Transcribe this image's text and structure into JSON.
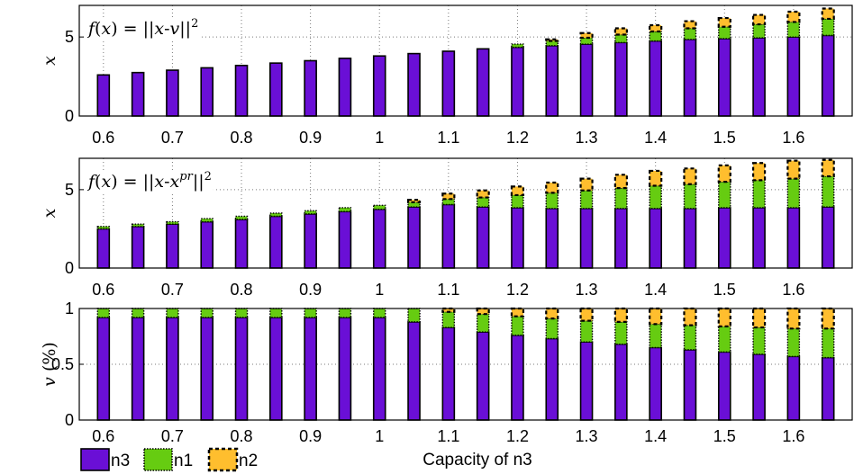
{
  "colors": {
    "n3": "#6a0fd6",
    "n1": "#66cc11",
    "n2": "#ffbe2e",
    "edge": "#000000",
    "grid": "#7a7a7a"
  },
  "x_tick_labels": [
    "0.6",
    "0.7",
    "0.8",
    "0.9",
    "1",
    "1.1",
    "1.2",
    "1.3",
    "1.4",
    "1.5",
    "1.6"
  ],
  "xlabel": "Capacity of n3",
  "legend": [
    {
      "name": "n3",
      "color": "#6a0fd6",
      "style": "solid-edge"
    },
    {
      "name": "n1",
      "color": "#66cc11",
      "style": "dotted-edge"
    },
    {
      "name": "n2",
      "color": "#ffbe2e",
      "style": "dashed-edge"
    }
  ],
  "chart_data": [
    {
      "type": "bar",
      "stacked": true,
      "title": "f(x) = ||x-v||^2",
      "title_parts": [
        {
          "t": "f",
          "i": true
        },
        {
          "t": "(",
          "i": false
        },
        {
          "t": "x",
          "i": true
        },
        {
          "t": ") = ||",
          "i": false
        },
        {
          "t": "x",
          "i": true
        },
        {
          "t": "-",
          "i": false
        },
        {
          "t": "v",
          "i": true
        },
        {
          "t": "||",
          "i": false
        },
        {
          "t": "2",
          "i": false,
          "sup": true
        }
      ],
      "ylabel": "x",
      "ylim": [
        0,
        7
      ],
      "yticks": [
        0,
        5
      ],
      "ytick_labels": [
        "0",
        "5"
      ],
      "grid": true,
      "x": [
        0.6,
        0.65,
        0.7,
        0.75,
        0.8,
        0.85,
        0.9,
        0.95,
        1.0,
        1.05,
        1.1,
        1.15,
        1.2,
        1.25,
        1.3,
        1.35,
        1.4,
        1.45,
        1.5,
        1.55,
        1.6,
        1.65
      ],
      "series": [
        {
          "name": "n3",
          "values": [
            2.6,
            2.75,
            2.9,
            3.05,
            3.2,
            3.35,
            3.5,
            3.65,
            3.8,
            3.95,
            4.1,
            4.25,
            4.35,
            4.45,
            4.55,
            4.65,
            4.75,
            4.85,
            4.9,
            4.95,
            5.0,
            5.1
          ]
        },
        {
          "name": "n1",
          "values": [
            0.0,
            0.0,
            0.0,
            0.0,
            0.0,
            0.0,
            0.0,
            0.0,
            0.0,
            0.0,
            0.0,
            0.0,
            0.2,
            0.3,
            0.4,
            0.5,
            0.6,
            0.7,
            0.75,
            0.85,
            0.95,
            1.05
          ]
        },
        {
          "name": "n2",
          "values": [
            0.0,
            0.0,
            0.0,
            0.0,
            0.0,
            0.0,
            0.0,
            0.0,
            0.0,
            0.0,
            0.0,
            0.0,
            0.0,
            0.1,
            0.3,
            0.4,
            0.4,
            0.45,
            0.55,
            0.6,
            0.65,
            0.65
          ]
        }
      ]
    },
    {
      "type": "bar",
      "stacked": true,
      "title": "f(x) = ||x-x^pr||^2",
      "title_parts": [
        {
          "t": "f",
          "i": true
        },
        {
          "t": "(",
          "i": false
        },
        {
          "t": "x",
          "i": true
        },
        {
          "t": ") = ||",
          "i": false
        },
        {
          "t": "x",
          "i": true
        },
        {
          "t": "-",
          "i": false
        },
        {
          "t": "x",
          "i": true
        },
        {
          "t": "pr",
          "i": true,
          "sup": true
        },
        {
          "t": "||",
          "i": false
        },
        {
          "t": "2",
          "i": false,
          "sup": true
        }
      ],
      "ylabel": "x",
      "ylim": [
        0,
        7
      ],
      "yticks": [
        0,
        5
      ],
      "ytick_labels": [
        "0",
        "5"
      ],
      "grid": true,
      "x": [
        0.6,
        0.65,
        0.7,
        0.75,
        0.8,
        0.85,
        0.9,
        0.95,
        1.0,
        1.05,
        1.1,
        1.15,
        1.2,
        1.25,
        1.3,
        1.35,
        1.4,
        1.45,
        1.5,
        1.55,
        1.6,
        1.65
      ],
      "series": [
        {
          "name": "n3",
          "values": [
            2.5,
            2.65,
            2.8,
            2.95,
            3.1,
            3.3,
            3.45,
            3.6,
            3.75,
            3.9,
            4.05,
            3.9,
            3.85,
            3.8,
            3.8,
            3.8,
            3.8,
            3.8,
            3.85,
            3.85,
            3.85,
            3.9
          ]
        },
        {
          "name": "n1",
          "values": [
            0.15,
            0.15,
            0.15,
            0.2,
            0.2,
            0.2,
            0.2,
            0.25,
            0.25,
            0.3,
            0.35,
            0.6,
            0.8,
            1.0,
            1.15,
            1.3,
            1.45,
            1.55,
            1.65,
            1.75,
            1.85,
            1.95
          ]
        },
        {
          "name": "n2",
          "values": [
            0.0,
            0.0,
            0.0,
            0.0,
            0.0,
            0.0,
            0.0,
            0.0,
            0.0,
            0.15,
            0.35,
            0.45,
            0.55,
            0.65,
            0.75,
            0.85,
            0.95,
            1.0,
            1.05,
            1.1,
            1.15,
            1.05
          ]
        }
      ]
    },
    {
      "type": "bar",
      "stacked": true,
      "title": "",
      "ylabel": "v (%)",
      "ylim": [
        0,
        1
      ],
      "yticks": [
        0,
        0.5,
        1
      ],
      "ytick_labels": [
        "0",
        "0.5",
        "1"
      ],
      "grid": true,
      "x": [
        0.6,
        0.65,
        0.7,
        0.75,
        0.8,
        0.85,
        0.9,
        0.95,
        1.0,
        1.05,
        1.1,
        1.15,
        1.2,
        1.25,
        1.3,
        1.35,
        1.4,
        1.45,
        1.5,
        1.55,
        1.6,
        1.65
      ],
      "series": [
        {
          "name": "n3",
          "values": [
            0.92,
            0.92,
            0.92,
            0.92,
            0.92,
            0.92,
            0.92,
            0.92,
            0.92,
            0.88,
            0.83,
            0.79,
            0.76,
            0.73,
            0.7,
            0.68,
            0.65,
            0.63,
            0.61,
            0.59,
            0.57,
            0.56
          ]
        },
        {
          "name": "n1",
          "values": [
            0.08,
            0.08,
            0.08,
            0.08,
            0.08,
            0.08,
            0.08,
            0.08,
            0.08,
            0.12,
            0.14,
            0.16,
            0.17,
            0.18,
            0.19,
            0.2,
            0.21,
            0.22,
            0.23,
            0.24,
            0.25,
            0.26
          ]
        },
        {
          "name": "n2",
          "values": [
            0.0,
            0.0,
            0.0,
            0.0,
            0.0,
            0.0,
            0.0,
            0.0,
            0.0,
            0.0,
            0.03,
            0.05,
            0.07,
            0.09,
            0.11,
            0.12,
            0.14,
            0.15,
            0.16,
            0.17,
            0.18,
            0.18
          ]
        }
      ]
    }
  ]
}
